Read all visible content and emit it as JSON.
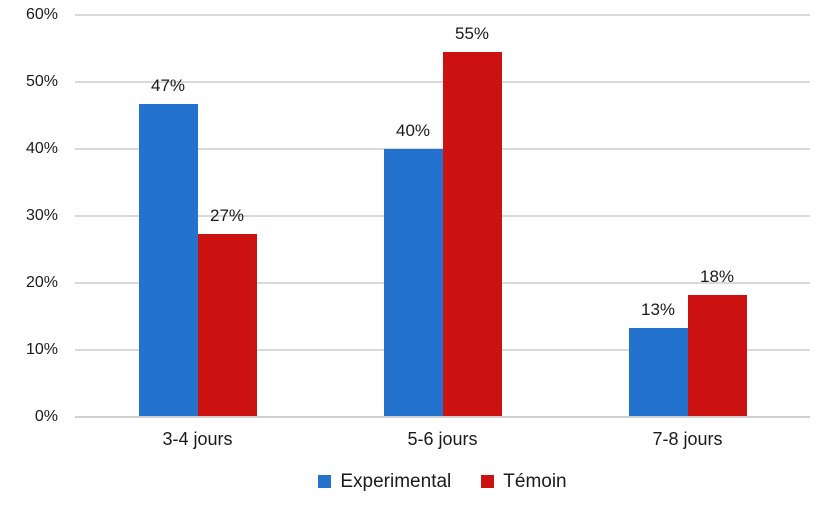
{
  "chart_data": {
    "type": "bar",
    "title": "",
    "xlabel": "",
    "ylabel": "",
    "categories": [
      "3-4 jours",
      "5-6 jours",
      "7-8 jours"
    ],
    "series": [
      {
        "name": "Experimental",
        "color": "#2373CE",
        "values": [
          46.7,
          40.0,
          13.3
        ],
        "data_labels": [
          "47%",
          "40%",
          "13%"
        ]
      },
      {
        "name": "Témoin",
        "color": "#CC1111",
        "values": [
          27.3,
          54.5,
          18.2
        ],
        "data_labels": [
          "27%",
          "55%",
          "18%"
        ]
      }
    ],
    "y_axis": {
      "min": 0,
      "max": 60,
      "tick_step": 10,
      "tick_labels": [
        "0%",
        "10%",
        "20%",
        "30%",
        "40%",
        "50%",
        "60%"
      ]
    },
    "grid": true,
    "legend_position": "bottom",
    "colors": {
      "gridline": "#D9D9D9",
      "axis_line": "#CFCFCF",
      "text": "#1A1A1A",
      "background": "#FFFFFF"
    }
  }
}
